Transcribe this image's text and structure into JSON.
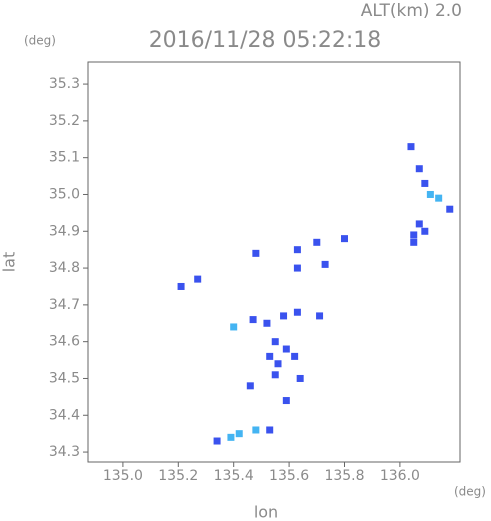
{
  "chart_data": {
    "type": "scatter",
    "annotations": [
      "ALT(km) 2.0"
    ],
    "title": "2016/11/28 05:22:18",
    "y_unit": "(deg)",
    "x_unit": "(deg)",
    "ylabel": "lat",
    "xlabel": "lon",
    "xlim": [
      134.874,
      136.217
    ],
    "ylim": [
      34.273,
      35.36
    ],
    "xticks": [
      {
        "value": 135,
        "label": "135.0"
      },
      135.2,
      135.4,
      135.6,
      135.8,
      {
        "value": 136,
        "label": "136.0"
      }
    ],
    "yticks": [
      34.3,
      34.4,
      34.5,
      34.6,
      34.7,
      34.8,
      34.9,
      {
        "value": 35,
        "label": "35.0"
      },
      35.1,
      35.2,
      35.3
    ],
    "series": [
      {
        "color": "#3a52ee",
        "x": [
          136.04,
          136.07,
          136.09,
          136.18,
          136.07,
          136.05,
          136.09,
          136.05,
          135.8,
          135.7,
          135.63,
          135.63,
          135.73,
          135.48,
          135.21,
          135.27,
          135.47,
          135.52,
          135.58,
          135.63,
          135.71,
          135.55,
          135.59,
          135.53,
          135.56,
          135.55,
          135.46,
          135.64,
          135.59,
          135.62,
          135.34,
          135.53
        ],
        "y": [
          35.13,
          35.07,
          35.03,
          34.96,
          34.92,
          34.89,
          34.9,
          34.87,
          34.88,
          34.87,
          34.85,
          34.8,
          34.81,
          34.84,
          34.75,
          34.77,
          34.66,
          34.65,
          34.67,
          34.68,
          34.67,
          34.6,
          34.58,
          34.56,
          34.54,
          34.51,
          34.48,
          34.5,
          34.44,
          34.56,
          34.33,
          34.36
        ]
      },
      {
        "color": "#44b4f2",
        "x": [
          136.11,
          136.14,
          135.4,
          135.39,
          135.42,
          135.48
        ],
        "y": [
          35.0,
          34.99,
          34.64,
          34.34,
          34.35,
          34.36
        ]
      }
    ]
  }
}
